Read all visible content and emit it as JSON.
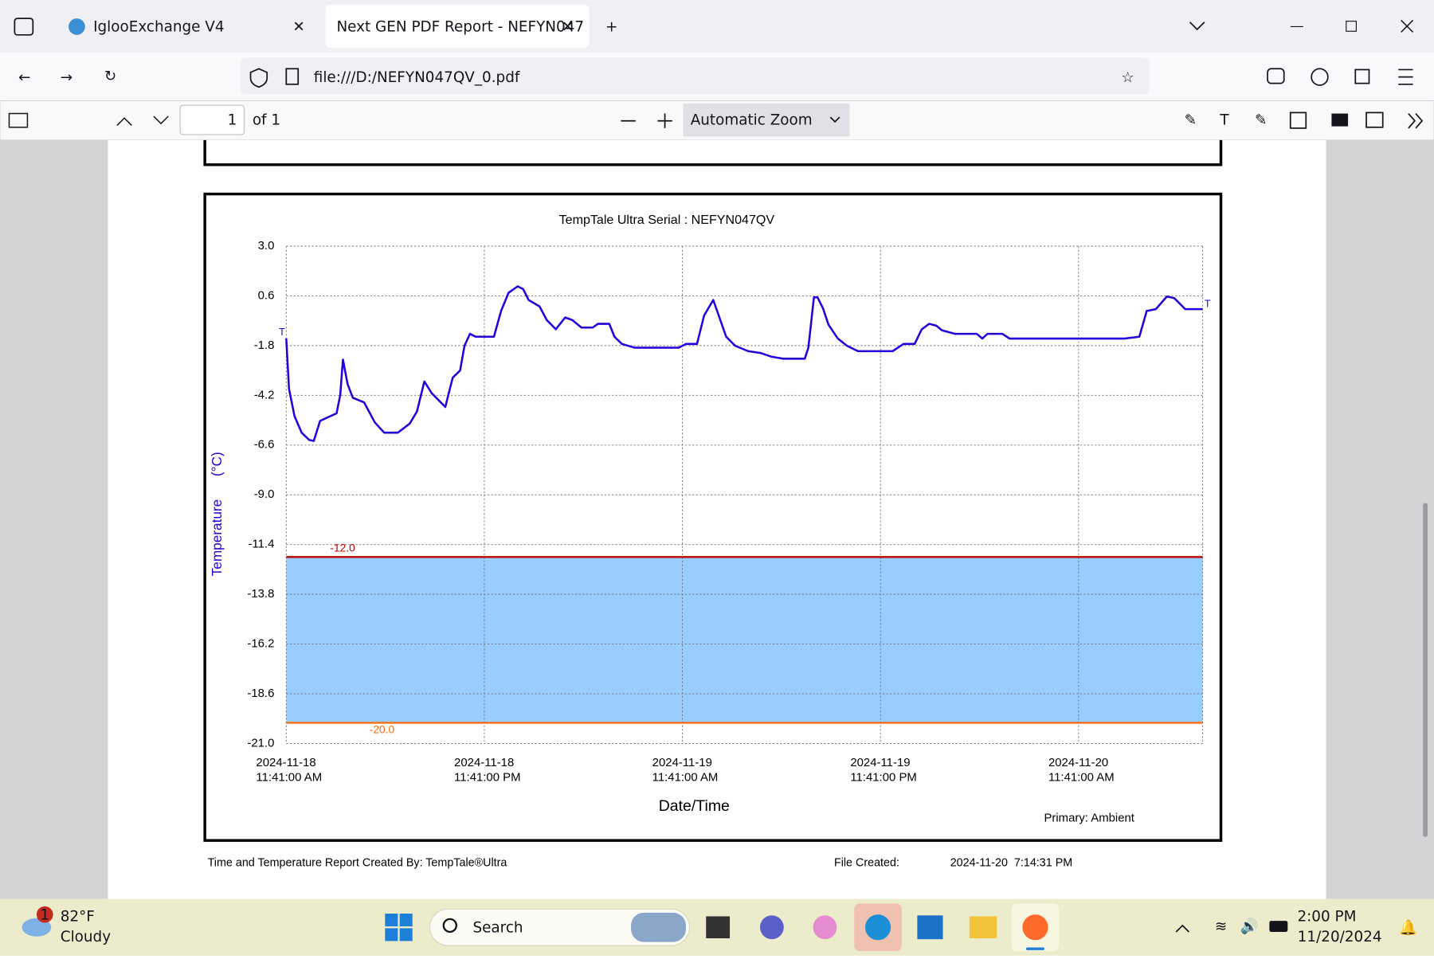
{
  "browser": {
    "tabs": [
      "IglooExchange V4",
      "Next GEN PDF Report - NEFYN047"
    ],
    "url": "file:///D:/NEFYN047QV_0.pdf"
  },
  "pdf_toolbar": {
    "page": "1",
    "page_count": "of 1",
    "zoom": "Automatic Zoom"
  },
  "chart_data": {
    "type": "line",
    "title": "TempTale Ultra  Serial : NEFYN047QV",
    "x_label": "Date/Time",
    "y_label": "Temperature      (°C)",
    "annotation": "Primary: Ambient",
    "end_marker": "T",
    "color": "#2200dd",
    "x": [
      "2024-11-18T11:41",
      "2024-11-18T11:51",
      "2024-11-18T12:11",
      "2024-11-18T12:37",
      "2024-11-18T13:04",
      "2024-11-18T13:21",
      "2024-11-18T13:44",
      "2024-11-18T14:44",
      "2024-11-18T14:57",
      "2024-11-18T15:07",
      "2024-11-18T15:24",
      "2024-11-18T15:43",
      "2024-11-18T16:24",
      "2024-11-18T17:03",
      "2024-11-18T17:37",
      "2024-11-18T18:27",
      "2024-11-18T19:10",
      "2024-11-18T19:36",
      "2024-11-18T20:03",
      "2024-11-18T20:30",
      "2024-11-18T21:19",
      "2024-11-18T21:46",
      "2024-11-18T22:13",
      "2024-11-18T22:29",
      "2024-11-18T22:49",
      "2024-11-18T23:09",
      "2024-11-19T00:16",
      "2024-11-19T00:42",
      "2024-11-19T01:09",
      "2024-11-19T01:42",
      "2024-11-19T02:02",
      "2024-11-19T02:22",
      "2024-11-19T03:02",
      "2024-11-19T03:28",
      "2024-11-19T04:01",
      "2024-11-19T04:35",
      "2024-11-19T05:01",
      "2024-11-19T05:34",
      "2024-11-19T06:15",
      "2024-11-19T06:34",
      "2024-11-19T07:15",
      "2024-11-19T07:34",
      "2024-11-19T08:01",
      "2024-11-19T08:48",
      "2024-11-19T11:27",
      "2024-11-19T11:54",
      "2024-11-19T12:34",
      "2024-11-19T13:00",
      "2024-11-19T13:33",
      "2024-11-19T13:53",
      "2024-11-19T14:20",
      "2024-11-19T14:53",
      "2024-11-19T15:40",
      "2024-11-19T16:26",
      "2024-11-19T17:06",
      "2024-11-19T17:46",
      "2024-11-19T19:06",
      "2024-11-19T19:19",
      "2024-11-19T19:39",
      "2024-11-19T19:52",
      "2024-11-19T20:12",
      "2024-11-19T20:32",
      "2024-11-19T21:06",
      "2024-11-19T21:39",
      "2024-11-19T22:19",
      "2024-11-20T00:25",
      "2024-11-20T01:05",
      "2024-11-20T01:45",
      "2024-11-20T02:11",
      "2024-11-20T02:38",
      "2024-11-20T03:04",
      "2024-11-20T03:24",
      "2024-11-20T04:11",
      "2024-11-20T05:31",
      "2024-11-20T05:51",
      "2024-11-20T06:10",
      "2024-11-20T07:04",
      "2024-11-20T07:30",
      "2024-11-20T14:29",
      "2024-11-20T15:22",
      "2024-11-20T15:49",
      "2024-11-20T16:22",
      "2024-11-20T17:02",
      "2024-11-20T17:29",
      "2024-11-20T18:09",
      "2024-11-20T19:12"
    ],
    "values": [
      -1.45,
      -3.88,
      -5.2,
      -6.0,
      -6.35,
      -6.4,
      -5.43,
      -5.07,
      -4.19,
      -2.47,
      -3.66,
      -4.32,
      -4.54,
      -5.51,
      -6.0,
      -6.0,
      -5.56,
      -4.98,
      -3.53,
      -4.1,
      -4.76,
      -3.35,
      -3.0,
      -1.81,
      -1.23,
      -1.37,
      -1.37,
      -0.13,
      0.75,
      1.06,
      0.93,
      0.4,
      0.09,
      -0.57,
      -1.01,
      -0.44,
      -0.57,
      -0.93,
      -0.93,
      -0.75,
      -0.75,
      -1.37,
      -1.72,
      -1.9,
      -1.9,
      -1.72,
      -1.72,
      -0.35,
      0.4,
      -0.35,
      -1.37,
      -1.81,
      -2.07,
      -2.16,
      -2.34,
      -2.43,
      -2.43,
      -1.9,
      0.53,
      0.53,
      0,
      -0.79,
      -1.46,
      -1.81,
      -2.07,
      -2.07,
      -1.72,
      -1.72,
      -1.01,
      -0.75,
      -0.84,
      -1.06,
      -1.23,
      -1.23,
      -1.46,
      -1.23,
      -1.23,
      -1.46,
      -1.46,
      -1.37,
      -0.13,
      -0.04,
      0.57,
      0.49,
      -0.04,
      -0.04
    ],
    "xlim": [
      "2024-11-18T11:41",
      "2024-11-20T19:12"
    ],
    "xticks": [
      {
        "value": "2024-11-18T11:41",
        "label": "2024-11-18\n11:41:00 AM"
      },
      {
        "value": "2024-11-18T23:41",
        "label": "2024-11-18\n11:41:00 PM"
      },
      {
        "value": "2024-11-19T11:41",
        "label": "2024-11-19\n11:41:00 AM"
      },
      {
        "value": "2024-11-19T23:41",
        "label": "2024-11-19\n11:41:00 PM"
      },
      {
        "value": "2024-11-20T11:41",
        "label": "2024-11-20\n11:41:00 AM"
      }
    ],
    "ylim": [
      -21,
      3
    ],
    "yticks": [
      {
        "value": 3,
        "label": "3.0"
      },
      0.6,
      -1.8,
      -4.2,
      -6.6,
      {
        "value": -9,
        "label": "-9.0"
      },
      -11.4,
      -13.8,
      -16.2,
      -18.6,
      {
        "value": -21,
        "label": "-21.0"
      }
    ],
    "grid": true,
    "limits": {
      "values": [
        -12,
        -20
      ],
      "value_labels": [
        "-12.0",
        "-20.0"
      ],
      "colors": [
        "#c00000",
        "#ff6a00"
      ],
      "band_color": "#99ccff"
    }
  },
  "report_footer": {
    "created_by": "Time and Temperature Report Created By:  TempTale®Ultra",
    "file_created_label": "File Created:",
    "file_created": "2024-11-20  7:14:31 PM"
  },
  "taskbar": {
    "weather_badge": "1",
    "temperature": "82°F",
    "condition": "Cloudy",
    "search": "Search",
    "time": "2:00 PM",
    "date": "11/20/2024"
  }
}
